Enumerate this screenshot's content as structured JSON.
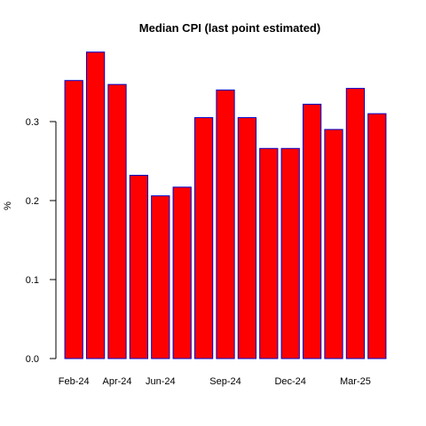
{
  "chart_data": {
    "type": "bar",
    "title": "Median CPI (last point estimated)",
    "xlabel": "",
    "ylabel": "%",
    "categories": [
      "Feb-24",
      "Mar-24",
      "Apr-24",
      "May-24",
      "Jun-24",
      "Jul-24",
      "Aug-24",
      "Sep-24",
      "Oct-24",
      "Nov-24",
      "Dec-24",
      "Jan-25",
      "Feb-25",
      "Mar-25",
      "Apr-25"
    ],
    "x_tick_labels": [
      "Feb-24",
      "Apr-24",
      "Jun-24",
      "Sep-24",
      "Dec-24",
      "Mar-25"
    ],
    "values": [
      0.352,
      0.388,
      0.347,
      0.232,
      0.206,
      0.217,
      0.305,
      0.34,
      0.305,
      0.266,
      0.266,
      0.322,
      0.29,
      0.342,
      0.31
    ],
    "ylim": [
      0,
      0.4
    ],
    "y_ticks": [
      0.0,
      0.1,
      0.2,
      0.3
    ],
    "y_tick_labels": [
      "0.0",
      "0.1",
      "0.2",
      "0.3"
    ],
    "bar_fill": "#ff0000",
    "bar_stroke": "#0000cc",
    "grid": false,
    "legend": "none"
  }
}
